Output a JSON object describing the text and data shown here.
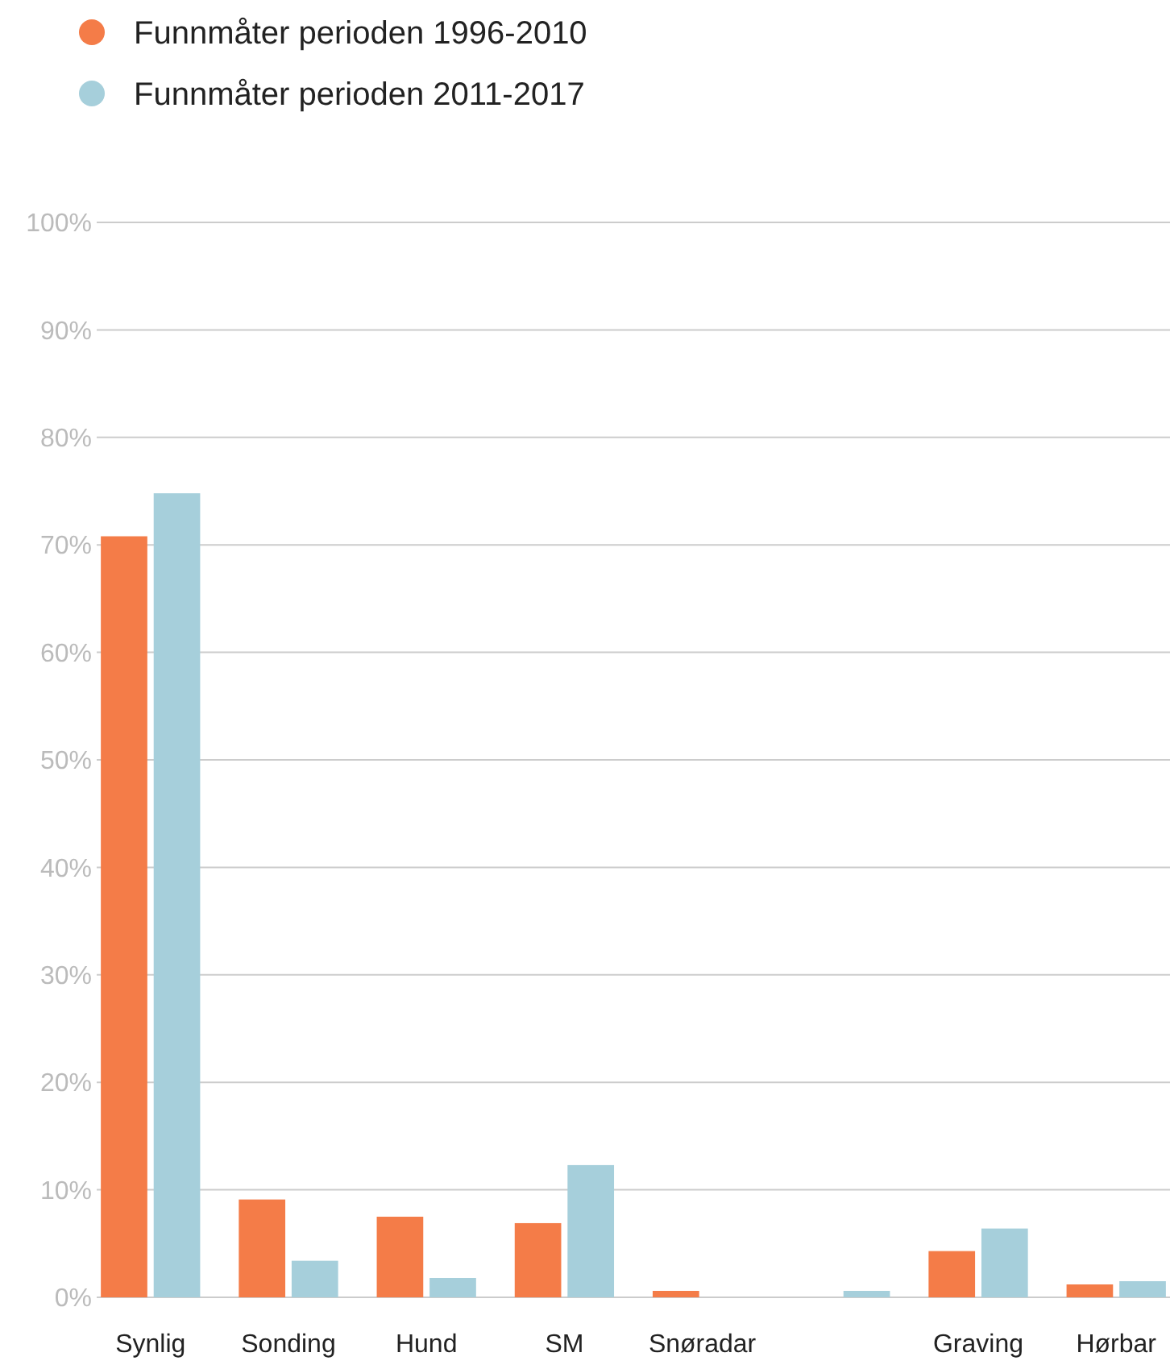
{
  "chart_data": {
    "type": "bar",
    "categories": [
      "Synlig",
      "Sonding",
      "Hund",
      "SM",
      "Snøradar",
      null,
      "Graving",
      "Hørbar"
    ],
    "series": [
      {
        "name": "Funnmåter perioden 1996-2010",
        "color": "#f47c48",
        "values": [
          70.8,
          9.1,
          7.5,
          6.9,
          0.6,
          0,
          4.3,
          1.2
        ]
      },
      {
        "name": "Funnmåter perioden 2011-2017",
        "color": "#a6cfdb",
        "values": [
          74.8,
          3.4,
          1.8,
          12.3,
          0,
          0.6,
          6.4,
          1.5
        ]
      }
    ],
    "ylim": [
      0,
      100
    ],
    "yticks": [
      {
        "value": 0,
        "label": "0%"
      },
      {
        "value": 10,
        "label": "10%"
      },
      {
        "value": 20,
        "label": "20%"
      },
      {
        "value": 30,
        "label": "30%"
      },
      {
        "value": 40,
        "label": "40%"
      },
      {
        "value": 50,
        "label": "50%"
      },
      {
        "value": 60,
        "label": "60%"
      },
      {
        "value": 70,
        "label": "70%"
      },
      {
        "value": 80,
        "label": "80%"
      },
      {
        "value": 90,
        "label": "90%"
      },
      {
        "value": 100,
        "label": "100%"
      }
    ],
    "grid": "y",
    "legend": "top left"
  }
}
